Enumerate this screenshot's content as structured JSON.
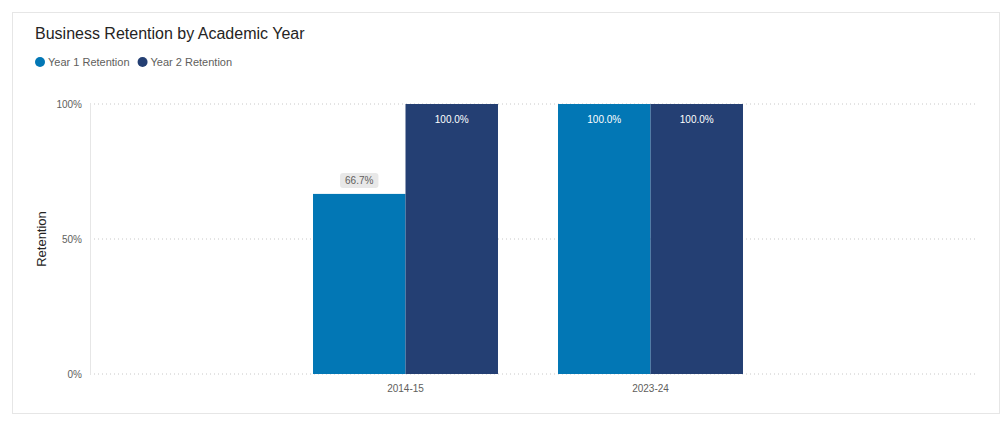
{
  "chart_data": {
    "type": "bar",
    "title": "Business Retention by Academic Year",
    "y_label": "Retention",
    "categories": [
      "2014-15",
      "2023-24"
    ],
    "series": [
      {
        "name": "Year 1 Retention",
        "color": "#0277b5",
        "values": [
          66.7,
          100
        ],
        "value_labels": [
          "66.7%",
          "100.0%"
        ]
      },
      {
        "name": "Year 2 Retention",
        "color": "#243f73",
        "values": [
          100,
          100
        ],
        "value_labels": [
          "100.0%",
          "100.0%"
        ]
      }
    ],
    "ylim": [
      0,
      100
    ],
    "yticks": [
      {
        "value": 0,
        "label": "0%"
      },
      {
        "value": 50,
        "label": "50%"
      },
      {
        "value": 100,
        "label": "100%"
      }
    ],
    "grid": true,
    "legend": "top-left",
    "data_labels": true
  }
}
